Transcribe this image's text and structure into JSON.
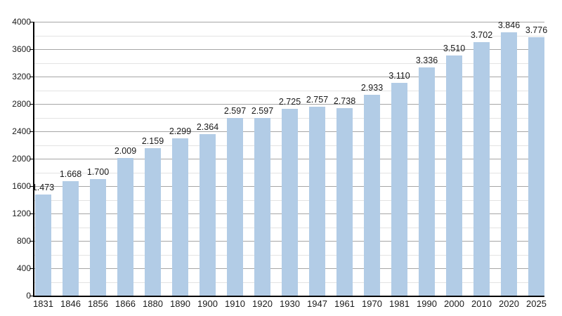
{
  "chart_data": {
    "type": "bar",
    "title": "",
    "xlabel": "",
    "ylabel": "",
    "categories": [
      "1831",
      "1846",
      "1856",
      "1866",
      "1880",
      "1890",
      "1900",
      "1910",
      "1920",
      "1930",
      "1947",
      "1961",
      "1970",
      "1981",
      "1990",
      "2000",
      "2010",
      "2020",
      "2025"
    ],
    "values": [
      1473,
      1668,
      1700,
      2009,
      2159,
      2299,
      2364,
      2597,
      2597,
      2725,
      2757,
      2738,
      2933,
      3110,
      3336,
      3510,
      3702,
      3846,
      3776
    ],
    "value_labels": [
      "1.473",
      "1.668",
      "1.700",
      "2.009",
      "2.159",
      "2.299",
      "2.364",
      "2.597",
      "2.597",
      "2.725",
      "2.757",
      "2.738",
      "2.933",
      "3.110",
      "3.336",
      "3.510",
      "3.702",
      "3.846",
      "3.776"
    ],
    "ylim": [
      0,
      4000
    ],
    "y_major_ticks": [
      0,
      400,
      800,
      1200,
      1600,
      2000,
      2400,
      2800,
      3200,
      3600,
      4000
    ],
    "y_tick_labels": [
      "0",
      "400",
      "800",
      "1200",
      "1600",
      "2000",
      "2400",
      "2800",
      "3200",
      "3600",
      "4000"
    ],
    "y_minor_step": 200,
    "grid": "horizontal-on",
    "legend": "none",
    "colors": {
      "bar": "#b2cce6",
      "major_grid": "#a6a6a6",
      "minor_grid": "#e3e3e3",
      "axis": "#000000",
      "text": "#1a1a1a",
      "background": "#ffffff"
    }
  }
}
